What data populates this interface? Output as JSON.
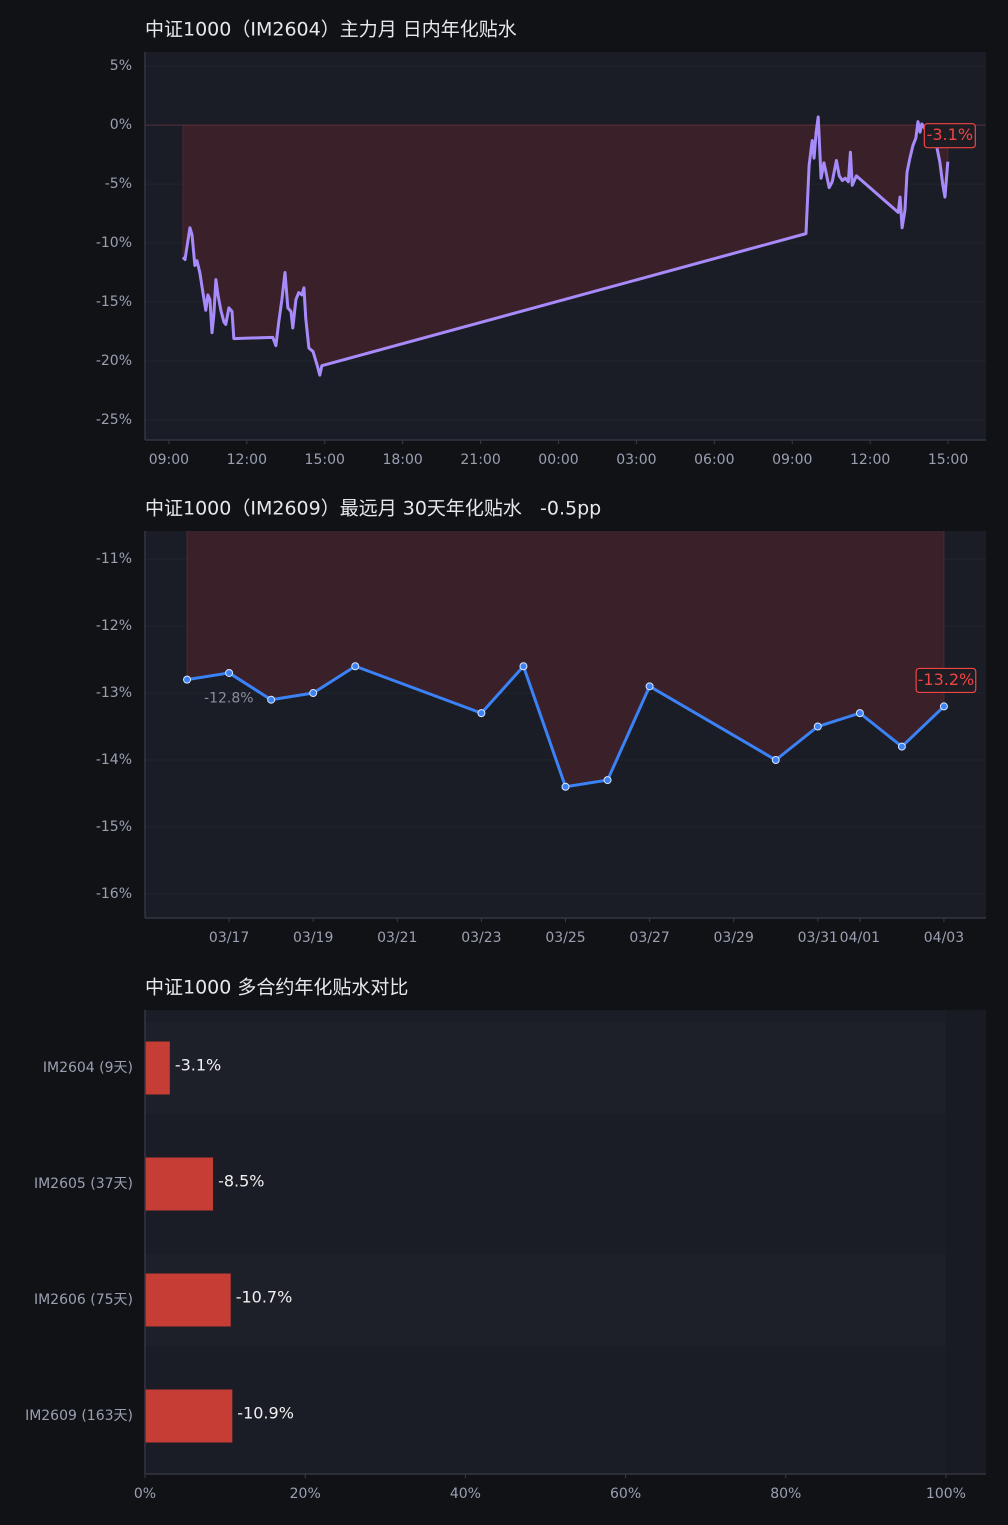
{
  "chart_data": [
    {
      "type": "line",
      "title": "中证1000（IM2604）主力月 日内年化贴水",
      "x": [
        9.54,
        9.62,
        9.81,
        9.89,
        10.0,
        10.08,
        10.19,
        10.31,
        10.42,
        10.5,
        10.58,
        10.66,
        10.73,
        10.81,
        10.89,
        11.0,
        11.12,
        11.19,
        11.31,
        11.43,
        11.5,
        13.0,
        13.12,
        13.23,
        13.35,
        13.47,
        13.58,
        13.7,
        13.77,
        13.89,
        14.0,
        14.12,
        14.2,
        14.27,
        14.39,
        14.55,
        14.7,
        14.81,
        14.89,
        33.53,
        33.65,
        33.77,
        33.84,
        33.92,
        34.0,
        34.11,
        34.22,
        34.3,
        34.42,
        34.54,
        34.7,
        34.81,
        34.93,
        35.04,
        35.16,
        35.24,
        35.31,
        35.47,
        37.08,
        37.15,
        37.23,
        37.34,
        37.42,
        37.53,
        37.65,
        37.76,
        37.84,
        37.92,
        37.99,
        38.11,
        38.22,
        38.34,
        38.45,
        38.57,
        38.68,
        38.8,
        38.88,
        38.99
      ],
      "values": [
        -11.2,
        -11.4,
        -8.7,
        -9.3,
        -11.9,
        -11.5,
        -12.5,
        -14.2,
        -15.7,
        -14.4,
        -14.8,
        -17.6,
        -16.1,
        -13.1,
        -14.4,
        -15.7,
        -16.7,
        -16.9,
        -15.5,
        -15.8,
        -18.1,
        -18.0,
        -18.7,
        -16.7,
        -14.8,
        -12.5,
        -15.5,
        -15.8,
        -17.2,
        -14.8,
        -14.2,
        -14.4,
        -13.8,
        -16.4,
        -18.9,
        -19.2,
        -20.3,
        -21.2,
        -20.4,
        -9.2,
        -3.4,
        -1.3,
        -2.8,
        -0.6,
        0.7,
        -4.5,
        -3.2,
        -4.0,
        -5.3,
        -4.8,
        -3.0,
        -4.3,
        -4.7,
        -4.5,
        -4.8,
        -2.3,
        -5.1,
        -4.3,
        -7.4,
        -6.1,
        -8.7,
        -7.2,
        -4.0,
        -2.8,
        -1.7,
        -1.1,
        0.3,
        -0.6,
        0.1,
        -0.3,
        0.0,
        -0.2,
        -0.3,
        -1.9,
        -3.1,
        -5.1,
        -6.1,
        -3.1
      ],
      "value_labels": [
        null,
        null,
        null,
        null,
        null,
        null,
        null,
        null,
        null,
        null,
        null,
        null,
        null,
        null,
        null,
        null,
        null,
        null,
        null,
        null,
        null,
        null,
        null,
        null,
        null,
        null,
        null,
        null,
        null,
        null,
        null,
        null,
        null,
        null,
        null,
        null,
        null,
        null,
        null,
        null,
        null,
        null,
        null,
        null,
        null,
        null,
        null,
        null,
        null,
        null,
        null,
        null,
        null,
        null,
        null,
        null,
        null,
        null,
        null,
        null,
        null,
        null,
        null,
        null,
        null,
        null,
        null,
        null,
        null,
        null,
        null,
        null,
        null,
        null,
        null,
        null,
        null,
        "-3.1%"
      ],
      "color": "#a78bfa",
      "fill_color": "#3a2129",
      "label_color": "#ef4444",
      "markers": false,
      "xlim": [
        8.08,
        40.46
      ],
      "xticks": [
        {
          "value": 9,
          "label": "09:00"
        },
        {
          "value": 12,
          "label": "12:00"
        },
        {
          "value": 15,
          "label": "15:00"
        },
        {
          "value": 18,
          "label": "18:00"
        },
        {
          "value": 21,
          "label": "21:00"
        },
        {
          "value": 24,
          "label": "00:00"
        },
        {
          "value": 27,
          "label": "03:00"
        },
        {
          "value": 30,
          "label": "06:00"
        },
        {
          "value": 33,
          "label": "09:00"
        },
        {
          "value": 36,
          "label": "12:00"
        },
        {
          "value": 39,
          "label": "15:00"
        }
      ],
      "ylim": [
        -26.7,
        6.2
      ],
      "yticks": [
        {
          "value": 5,
          "label": "5%"
        },
        {
          "value": 0,
          "label": "0%"
        },
        {
          "value": -5,
          "label": "-5%"
        },
        {
          "value": -10,
          "label": "-10%"
        },
        {
          "value": -15,
          "label": "-15%"
        },
        {
          "value": -20,
          "label": "-20%"
        },
        {
          "value": -25,
          "label": "-25%"
        }
      ],
      "grid": true
    },
    {
      "type": "line",
      "title": "中证1000（IM2609）最远月 30天年化贴水   -0.5pp",
      "x": [
        "03/16",
        "03/17",
        "03/18",
        "03/19",
        "03/20",
        "03/23",
        "03/24",
        "03/25",
        "03/26",
        "03/27",
        "03/30",
        "03/31",
        "04/01",
        "04/02",
        "04/03"
      ],
      "values": [
        -12.8,
        -12.7,
        -13.1,
        -13.0,
        -12.6,
        -13.3,
        -12.6,
        -14.4,
        -14.3,
        -12.9,
        -14.0,
        -13.5,
        -13.3,
        -13.8,
        -13.2
      ],
      "value_labels": [
        "-12.8%",
        null,
        null,
        null,
        null,
        null,
        null,
        null,
        null,
        null,
        null,
        null,
        null,
        null,
        "-13.2%"
      ],
      "color": "#3b82f6",
      "fill_color": "#3a2129",
      "label_color": "#ef4444",
      "markers": true,
      "xlim": [
        "03/15",
        "04/04"
      ],
      "xticks": [
        "03/17",
        "03/19",
        "03/21",
        "03/23",
        "03/25",
        "03/27",
        "03/29",
        "03/31",
        "04/01",
        "04/03"
      ],
      "ylim": [
        -16.36,
        -10.58
      ],
      "yticks": [
        {
          "value": -11,
          "label": "-11%"
        },
        {
          "value": -12,
          "label": "-12%"
        },
        {
          "value": -13,
          "label": "-13%"
        },
        {
          "value": -14,
          "label": "-14%"
        },
        {
          "value": -15,
          "label": "-15%"
        },
        {
          "value": -16,
          "label": "-16%"
        }
      ],
      "grid": true
    },
    {
      "type": "bar",
      "orientation": "horizontal",
      "title": "中证1000 多合约年化贴水对比",
      "categories": [
        "IM2604 (9天)",
        "IM2605 (37天)",
        "IM2606 (75天)",
        "IM2609 (163天)"
      ],
      "values": [
        -3.1,
        -8.5,
        -10.7,
        -10.9
      ],
      "value_labels": [
        "-3.1%",
        "-8.5%",
        "-10.7%",
        "-10.9%"
      ],
      "color": "#c63d35",
      "xlim": [
        0,
        105
      ],
      "xticks": [
        {
          "value": 0,
          "label": "0%"
        },
        {
          "value": 20,
          "label": "20%"
        },
        {
          "value": 40,
          "label": "40%"
        },
        {
          "value": 60,
          "label": "60%"
        },
        {
          "value": 80,
          "label": "80%"
        },
        {
          "value": 100,
          "label": "100%"
        }
      ],
      "grid": false
    }
  ]
}
